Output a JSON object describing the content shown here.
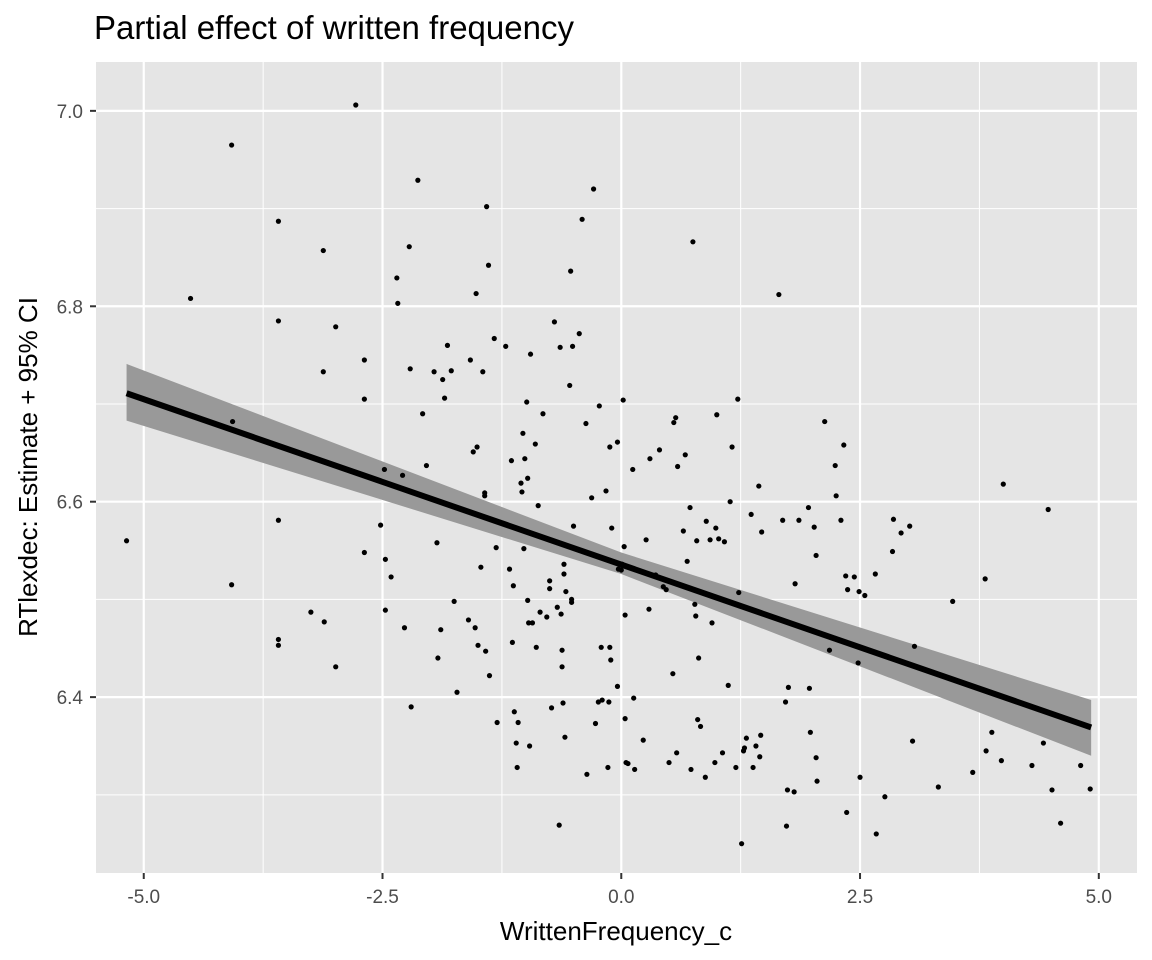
{
  "chart_data": {
    "type": "scatter",
    "title": "Partial effect of written frequency",
    "xlabel": "WrittenFrequency_c",
    "ylabel": "RTlexdec: Estimate + 95% CI",
    "xlim": [
      -5.5,
      5.4
    ],
    "ylim": [
      6.22,
      7.05
    ],
    "x_ticks": [
      -5.0,
      -2.5,
      0.0,
      2.5,
      5.0
    ],
    "x_tick_labels": [
      "-5.0",
      "-2.5",
      "0.0",
      "2.5",
      "5.0"
    ],
    "y_ticks": [
      6.4,
      6.6,
      6.8,
      7.0
    ],
    "y_tick_labels": [
      "6.4",
      "6.6",
      "6.8",
      "7.0"
    ],
    "grid": true,
    "colors": {
      "panel": "#e5e5e5",
      "grid": "#ffffff",
      "points": "#000000",
      "line": "#000000",
      "band": "#999999"
    },
    "fit_line": {
      "x": [
        -5.18,
        4.92
      ],
      "y": [
        6.711,
        6.369
      ]
    },
    "ci_band": {
      "x": [
        -5.18,
        0.0,
        4.92
      ],
      "lower": [
        6.683,
        6.526,
        6.34
      ],
      "upper": [
        6.741,
        6.548,
        6.397
      ]
    },
    "points": [
      {
        "x": -5.18,
        "y": 6.56
      },
      {
        "x": -4.51,
        "y": 6.808
      },
      {
        "x": -4.08,
        "y": 6.965
      },
      {
        "x": -4.07,
        "y": 6.682
      },
      {
        "x": -4.08,
        "y": 6.515
      },
      {
        "x": -3.59,
        "y": 6.887
      },
      {
        "x": -3.59,
        "y": 6.785
      },
      {
        "x": -3.59,
        "y": 6.581
      },
      {
        "x": -3.59,
        "y": 6.459
      },
      {
        "x": -3.59,
        "y": 6.453
      },
      {
        "x": -3.25,
        "y": 6.487
      },
      {
        "x": -3.12,
        "y": 6.857
      },
      {
        "x": -3.12,
        "y": 6.733
      },
      {
        "x": -3.11,
        "y": 6.477
      },
      {
        "x": -2.99,
        "y": 6.779
      },
      {
        "x": -2.99,
        "y": 6.431
      },
      {
        "x": -2.78,
        "y": 7.006
      },
      {
        "x": -2.69,
        "y": 6.745
      },
      {
        "x": -2.69,
        "y": 6.705
      },
      {
        "x": -2.69,
        "y": 6.548
      },
      {
        "x": -2.52,
        "y": 6.576
      },
      {
        "x": -2.48,
        "y": 6.633
      },
      {
        "x": -2.47,
        "y": 6.541
      },
      {
        "x": -2.47,
        "y": 6.489
      },
      {
        "x": -2.41,
        "y": 6.523
      },
      {
        "x": -2.35,
        "y": 6.829
      },
      {
        "x": -2.34,
        "y": 6.803
      },
      {
        "x": -2.29,
        "y": 6.627
      },
      {
        "x": -2.27,
        "y": 6.471
      },
      {
        "x": -2.22,
        "y": 6.861
      },
      {
        "x": -2.21,
        "y": 6.736
      },
      {
        "x": -2.2,
        "y": 6.39
      },
      {
        "x": -2.13,
        "y": 6.929
      },
      {
        "x": -2.08,
        "y": 6.69
      },
      {
        "x": -2.04,
        "y": 6.637
      },
      {
        "x": -1.96,
        "y": 6.733
      },
      {
        "x": -1.93,
        "y": 6.558
      },
      {
        "x": -1.92,
        "y": 6.44
      },
      {
        "x": -1.89,
        "y": 6.469
      },
      {
        "x": -1.87,
        "y": 6.725
      },
      {
        "x": -1.85,
        "y": 6.706
      },
      {
        "x": -1.82,
        "y": 6.76
      },
      {
        "x": -1.78,
        "y": 6.734
      },
      {
        "x": -1.75,
        "y": 6.498
      },
      {
        "x": -1.72,
        "y": 6.405
      },
      {
        "x": -1.6,
        "y": 6.479
      },
      {
        "x": -1.58,
        "y": 6.745
      },
      {
        "x": -1.55,
        "y": 6.651
      },
      {
        "x": -1.53,
        "y": 6.471
      },
      {
        "x": -1.52,
        "y": 6.813
      },
      {
        "x": -1.51,
        "y": 6.656
      },
      {
        "x": -1.5,
        "y": 6.453
      },
      {
        "x": -1.47,
        "y": 6.533
      },
      {
        "x": -1.45,
        "y": 6.733
      },
      {
        "x": -1.43,
        "y": 6.609
      },
      {
        "x": -1.43,
        "y": 6.606
      },
      {
        "x": -1.42,
        "y": 6.447
      },
      {
        "x": -1.41,
        "y": 6.902
      },
      {
        "x": -1.39,
        "y": 6.842
      },
      {
        "x": -1.38,
        "y": 6.422
      },
      {
        "x": -1.33,
        "y": 6.767
      },
      {
        "x": -1.31,
        "y": 6.553
      },
      {
        "x": -1.3,
        "y": 6.374
      },
      {
        "x": -1.21,
        "y": 6.759
      },
      {
        "x": -1.17,
        "y": 6.531
      },
      {
        "x": -1.15,
        "y": 6.642
      },
      {
        "x": -1.14,
        "y": 6.456
      },
      {
        "x": -1.13,
        "y": 6.514
      },
      {
        "x": -1.12,
        "y": 6.385
      },
      {
        "x": -1.1,
        "y": 6.353
      },
      {
        "x": -1.09,
        "y": 6.328
      },
      {
        "x": -1.08,
        "y": 6.374
      },
      {
        "x": -1.05,
        "y": 6.619
      },
      {
        "x": -1.04,
        "y": 6.61
      },
      {
        "x": -1.03,
        "y": 6.67
      },
      {
        "x": -1.02,
        "y": 6.552
      },
      {
        "x": -1.01,
        "y": 6.644
      },
      {
        "x": -0.99,
        "y": 6.702
      },
      {
        "x": -0.98,
        "y": 6.624
      },
      {
        "x": -0.98,
        "y": 6.499
      },
      {
        "x": -0.97,
        "y": 6.476
      },
      {
        "x": -0.96,
        "y": 6.35
      },
      {
        "x": -0.95,
        "y": 6.751
      },
      {
        "x": -0.93,
        "y": 6.476
      },
      {
        "x": -0.9,
        "y": 6.659
      },
      {
        "x": -0.89,
        "y": 6.451
      },
      {
        "x": -0.87,
        "y": 6.596
      },
      {
        "x": -0.85,
        "y": 6.487
      },
      {
        "x": -0.82,
        "y": 6.69
      },
      {
        "x": -0.78,
        "y": 6.482
      },
      {
        "x": -0.75,
        "y": 6.519
      },
      {
        "x": -0.75,
        "y": 6.511
      },
      {
        "x": -0.73,
        "y": 6.389
      },
      {
        "x": -0.7,
        "y": 6.784
      },
      {
        "x": -0.67,
        "y": 6.492
      },
      {
        "x": -0.65,
        "y": 6.269
      },
      {
        "x": -0.64,
        "y": 6.758
      },
      {
        "x": -0.63,
        "y": 6.485
      },
      {
        "x": -0.62,
        "y": 6.448
      },
      {
        "x": -0.62,
        "y": 6.431
      },
      {
        "x": -0.61,
        "y": 6.394
      },
      {
        "x": -0.6,
        "y": 6.536
      },
      {
        "x": -0.6,
        "y": 6.526
      },
      {
        "x": -0.59,
        "y": 6.359
      },
      {
        "x": -0.58,
        "y": 6.508
      },
      {
        "x": -0.54,
        "y": 6.719
      },
      {
        "x": -0.53,
        "y": 6.836
      },
      {
        "x": -0.52,
        "y": 6.5
      },
      {
        "x": -0.52,
        "y": 6.497
      },
      {
        "x": -0.51,
        "y": 6.759
      },
      {
        "x": -0.5,
        "y": 6.575
      },
      {
        "x": -0.44,
        "y": 6.772
      },
      {
        "x": -0.41,
        "y": 6.889
      },
      {
        "x": -0.37,
        "y": 6.68
      },
      {
        "x": -0.36,
        "y": 6.321
      },
      {
        "x": -0.31,
        "y": 6.604
      },
      {
        "x": -0.29,
        "y": 6.92
      },
      {
        "x": -0.27,
        "y": 6.373
      },
      {
        "x": -0.24,
        "y": 6.395
      },
      {
        "x": -0.23,
        "y": 6.698
      },
      {
        "x": -0.21,
        "y": 6.451
      },
      {
        "x": -0.2,
        "y": 6.397
      },
      {
        "x": -0.16,
        "y": 6.611
      },
      {
        "x": -0.14,
        "y": 6.328
      },
      {
        "x": -0.13,
        "y": 6.395
      },
      {
        "x": -0.12,
        "y": 6.656
      },
      {
        "x": -0.12,
        "y": 6.451
      },
      {
        "x": -0.11,
        "y": 6.438
      },
      {
        "x": -0.1,
        "y": 6.573
      },
      {
        "x": -0.04,
        "y": 6.661
      },
      {
        "x": -0.04,
        "y": 6.411
      },
      {
        "x": -0.03,
        "y": 6.531
      },
      {
        "x": 0.0,
        "y": 6.53
      },
      {
        "x": 0.01,
        "y": 6.536
      },
      {
        "x": 0.02,
        "y": 6.704
      },
      {
        "x": 0.03,
        "y": 6.554
      },
      {
        "x": 0.04,
        "y": 6.484
      },
      {
        "x": 0.04,
        "y": 6.378
      },
      {
        "x": 0.05,
        "y": 6.333
      },
      {
        "x": 0.07,
        "y": 6.332
      },
      {
        "x": 0.12,
        "y": 6.633
      },
      {
        "x": 0.13,
        "y": 6.399
      },
      {
        "x": 0.14,
        "y": 6.326
      },
      {
        "x": 0.23,
        "y": 6.356
      },
      {
        "x": 0.26,
        "y": 6.561
      },
      {
        "x": 0.29,
        "y": 6.49
      },
      {
        "x": 0.3,
        "y": 6.644
      },
      {
        "x": 0.36,
        "y": 6.525
      },
      {
        "x": 0.4,
        "y": 6.653
      },
      {
        "x": 0.44,
        "y": 6.513
      },
      {
        "x": 0.47,
        "y": 6.51
      },
      {
        "x": 0.5,
        "y": 6.333
      },
      {
        "x": 0.54,
        "y": 6.424
      },
      {
        "x": 0.55,
        "y": 6.681
      },
      {
        "x": 0.57,
        "y": 6.686
      },
      {
        "x": 0.58,
        "y": 6.343
      },
      {
        "x": 0.59,
        "y": 6.636
      },
      {
        "x": 0.65,
        "y": 6.57
      },
      {
        "x": 0.67,
        "y": 6.648
      },
      {
        "x": 0.69,
        "y": 6.539
      },
      {
        "x": 0.72,
        "y": 6.594
      },
      {
        "x": 0.73,
        "y": 6.326
      },
      {
        "x": 0.75,
        "y": 6.866
      },
      {
        "x": 0.77,
        "y": 6.495
      },
      {
        "x": 0.78,
        "y": 6.483
      },
      {
        "x": 0.79,
        "y": 6.56
      },
      {
        "x": 0.8,
        "y": 6.377
      },
      {
        "x": 0.81,
        "y": 6.44
      },
      {
        "x": 0.83,
        "y": 6.37
      },
      {
        "x": 0.88,
        "y": 6.318
      },
      {
        "x": 0.89,
        "y": 6.58
      },
      {
        "x": 0.93,
        "y": 6.561
      },
      {
        "x": 0.95,
        "y": 6.476
      },
      {
        "x": 0.98,
        "y": 6.333
      },
      {
        "x": 0.99,
        "y": 6.573
      },
      {
        "x": 1.0,
        "y": 6.689
      },
      {
        "x": 1.02,
        "y": 6.562
      },
      {
        "x": 1.06,
        "y": 6.343
      },
      {
        "x": 1.08,
        "y": 6.559
      },
      {
        "x": 1.12,
        "y": 6.412
      },
      {
        "x": 1.14,
        "y": 6.6
      },
      {
        "x": 1.16,
        "y": 6.656
      },
      {
        "x": 1.2,
        "y": 6.328
      },
      {
        "x": 1.22,
        "y": 6.705
      },
      {
        "x": 1.23,
        "y": 6.507
      },
      {
        "x": 1.26,
        "y": 6.25
      },
      {
        "x": 1.28,
        "y": 6.345
      },
      {
        "x": 1.29,
        "y": 6.348
      },
      {
        "x": 1.31,
        "y": 6.358
      },
      {
        "x": 1.36,
        "y": 6.587
      },
      {
        "x": 1.38,
        "y": 6.328
      },
      {
        "x": 1.41,
        "y": 6.35
      },
      {
        "x": 1.44,
        "y": 6.616
      },
      {
        "x": 1.45,
        "y": 6.339
      },
      {
        "x": 1.46,
        "y": 6.361
      },
      {
        "x": 1.47,
        "y": 6.569
      },
      {
        "x": 1.65,
        "y": 6.812
      },
      {
        "x": 1.69,
        "y": 6.581
      },
      {
        "x": 1.72,
        "y": 6.395
      },
      {
        "x": 1.73,
        "y": 6.268
      },
      {
        "x": 1.74,
        "y": 6.305
      },
      {
        "x": 1.75,
        "y": 6.41
      },
      {
        "x": 1.81,
        "y": 6.303
      },
      {
        "x": 1.82,
        "y": 6.516
      },
      {
        "x": 1.86,
        "y": 6.581
      },
      {
        "x": 1.96,
        "y": 6.594
      },
      {
        "x": 1.97,
        "y": 6.409
      },
      {
        "x": 1.98,
        "y": 6.364
      },
      {
        "x": 2.02,
        "y": 6.574
      },
      {
        "x": 2.04,
        "y": 6.545
      },
      {
        "x": 2.04,
        "y": 6.338
      },
      {
        "x": 2.05,
        "y": 6.314
      },
      {
        "x": 2.13,
        "y": 6.682
      },
      {
        "x": 2.18,
        "y": 6.448
      },
      {
        "x": 2.24,
        "y": 6.637
      },
      {
        "x": 2.25,
        "y": 6.606
      },
      {
        "x": 2.3,
        "y": 6.581
      },
      {
        "x": 2.33,
        "y": 6.658
      },
      {
        "x": 2.35,
        "y": 6.524
      },
      {
        "x": 2.36,
        "y": 6.282
      },
      {
        "x": 2.37,
        "y": 6.51
      },
      {
        "x": 2.44,
        "y": 6.523
      },
      {
        "x": 2.48,
        "y": 6.435
      },
      {
        "x": 2.49,
        "y": 6.508
      },
      {
        "x": 2.5,
        "y": 6.318
      },
      {
        "x": 2.55,
        "y": 6.504
      },
      {
        "x": 2.66,
        "y": 6.526
      },
      {
        "x": 2.67,
        "y": 6.26
      },
      {
        "x": 2.76,
        "y": 6.298
      },
      {
        "x": 2.84,
        "y": 6.549
      },
      {
        "x": 2.85,
        "y": 6.582
      },
      {
        "x": 2.93,
        "y": 6.568
      },
      {
        "x": 3.02,
        "y": 6.575
      },
      {
        "x": 3.05,
        "y": 6.355
      },
      {
        "x": 3.07,
        "y": 6.452
      },
      {
        "x": 3.32,
        "y": 6.308
      },
      {
        "x": 3.47,
        "y": 6.498
      },
      {
        "x": 3.68,
        "y": 6.323
      },
      {
        "x": 3.81,
        "y": 6.521
      },
      {
        "x": 3.82,
        "y": 6.345
      },
      {
        "x": 3.88,
        "y": 6.364
      },
      {
        "x": 3.98,
        "y": 6.335
      },
      {
        "x": 4.0,
        "y": 6.618
      },
      {
        "x": 4.3,
        "y": 6.33
      },
      {
        "x": 4.42,
        "y": 6.353
      },
      {
        "x": 4.47,
        "y": 6.592
      },
      {
        "x": 4.51,
        "y": 6.305
      },
      {
        "x": 4.6,
        "y": 6.271
      },
      {
        "x": 4.81,
        "y": 6.33
      },
      {
        "x": 4.91,
        "y": 6.306
      }
    ]
  }
}
